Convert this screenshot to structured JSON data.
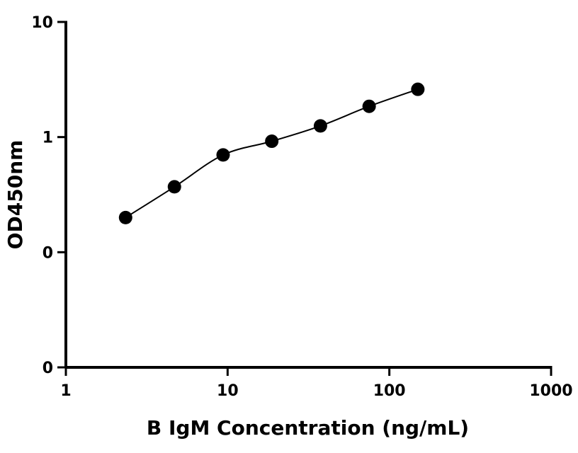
{
  "chart_data": {
    "type": "scatter",
    "xlabel": "B IgM Concentration (ng/mL)",
    "ylabel": "OD450nm",
    "x_scale": "log",
    "y_scale": "log",
    "xlim": [
      1,
      1000
    ],
    "x_ticks": [
      1,
      10,
      100,
      1000
    ],
    "x_tick_labels": [
      "1",
      "10",
      "100",
      "1000"
    ],
    "y_ticks": [
      "10",
      "1",
      "0",
      "0"
    ],
    "grid": false,
    "legend": "none",
    "series": [
      {
        "x": [
          2.34,
          4.69,
          9.38,
          18.75,
          37.5,
          75,
          150
        ],
        "y": [
          0.2,
          0.37,
          0.7,
          0.92,
          1.25,
          1.85,
          2.6
        ]
      }
    ],
    "fit_curve": true,
    "colors": {
      "points": "#000000",
      "axis": "#000000"
    }
  }
}
